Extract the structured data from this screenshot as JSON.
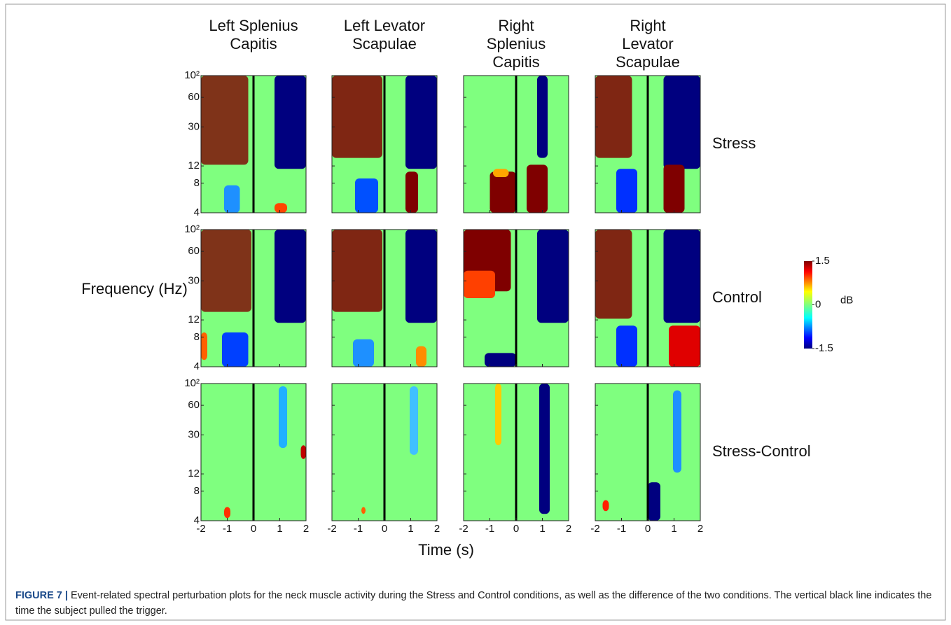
{
  "chart_data": {
    "type": "heatmap-grid",
    "columns": [
      "Left Splenius Capitis",
      "Left Levator Scapulae",
      "Right Splenius Capitis",
      "Right Levator Scapulae"
    ],
    "rows": [
      "Stress",
      "Control",
      "Stress-Control"
    ],
    "xlabel": "Time (s)",
    "ylabel": "Frequency (Hz)",
    "xlim": [
      -2,
      2
    ],
    "xticks": [
      -2,
      -1,
      0,
      1,
      2
    ],
    "ylim": [
      4,
      100
    ],
    "yticks": [
      4,
      8,
      12,
      30,
      60,
      {
        "value": 100,
        "label": "10²"
      }
    ],
    "ylog": true,
    "colorbar": {
      "label": "dB",
      "lim": [
        -1.5,
        1.5
      ],
      "ticks": [
        -1.5,
        0,
        1.5
      ]
    }
  },
  "caption": {
    "label": "FIGURE 7 |",
    "text": "Event-related spectral perturbation plots for the neck muscle activity during the Stress and Control conditions, as well as the difference of the two conditions. The vertical black line indicates the time the subject pulled the trigger."
  }
}
